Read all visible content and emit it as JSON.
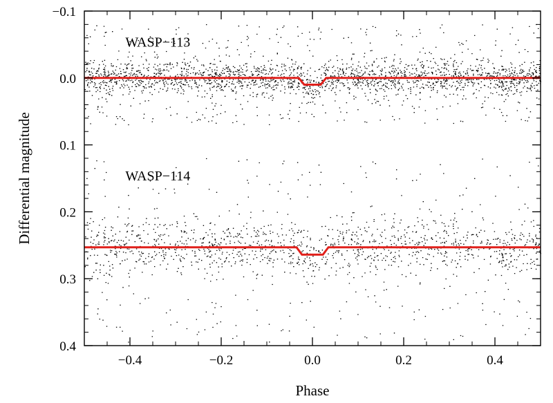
{
  "chart_data": {
    "type": "scatter",
    "title": "",
    "xlabel": "Phase",
    "ylabel": "Differential magnitude",
    "xlim": [
      -0.5,
      0.5
    ],
    "ylim": [
      -0.1,
      0.4
    ],
    "y_inverted": true,
    "xticks": [
      -0.4,
      -0.2,
      0.0,
      0.2,
      0.4
    ],
    "xtick_labels": [
      "−0.4",
      "−0.2",
      "0.0",
      "0.2",
      "0.4"
    ],
    "yticks": [
      -0.1,
      0.0,
      0.1,
      0.2,
      0.3,
      0.4
    ],
    "ytick_labels": [
      "−0.1",
      "0.0",
      "0.1",
      "0.2",
      "0.3",
      "0.4"
    ],
    "grid": false,
    "legend": "none",
    "point_color": "#000000",
    "model_color": "#e0201b",
    "series": [
      {
        "label": "WASP−113",
        "label_pos": {
          "x": -0.41,
          "y": -0.055
        },
        "baseline": 0.0,
        "transit_depth": 0.01,
        "transit_half_width": 0.03,
        "scatter_core": 0.012,
        "scatter_range": [
          -0.08,
          0.07
        ]
      },
      {
        "label": "WASP−114",
        "label_pos": {
          "x": -0.41,
          "y": 0.145
        },
        "baseline": 0.253,
        "transit_depth": 0.011,
        "transit_half_width": 0.035,
        "scatter_core": 0.02,
        "scatter_range": [
          0.12,
          0.395
        ]
      }
    ]
  }
}
